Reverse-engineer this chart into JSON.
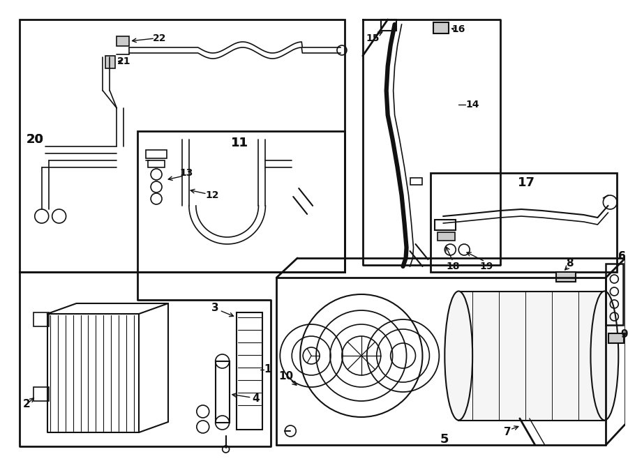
{
  "bg": "#ffffff",
  "lc": "#111111",
  "fig_w": 9.0,
  "fig_h": 6.61,
  "dpi": 100
}
